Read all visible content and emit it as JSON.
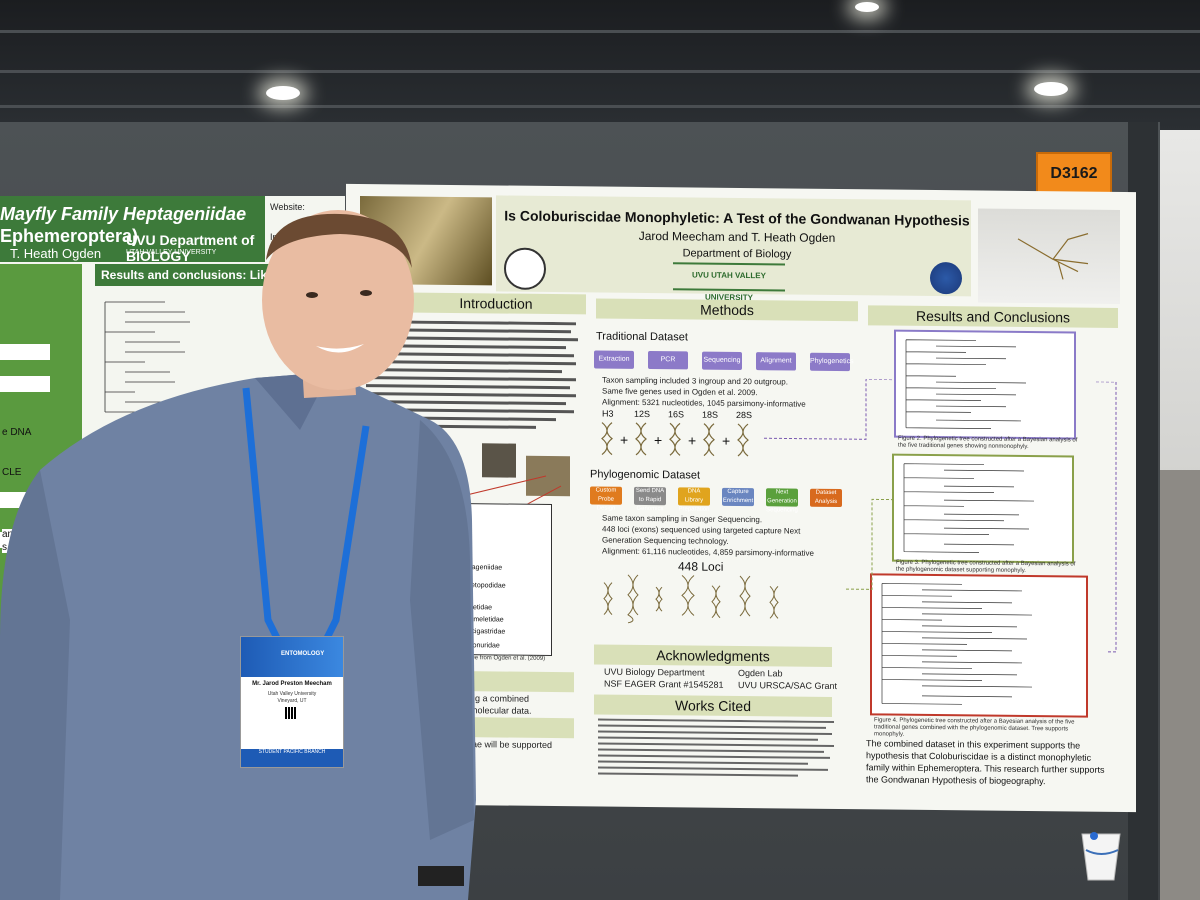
{
  "booth_number": "D3162",
  "left_poster": {
    "title_line1": "Mayfly Family Heptageniidae",
    "title_line2": "Ephemeroptera)",
    "author": "T. Heath Ogden",
    "logo": "UVU Department of BIOLOGY",
    "university": "UTAH VALLEY UNIVERSITY",
    "website_label": "Website:",
    "instagram_label": "Instagram:",
    "section": "Results and conclusions: Likelihood",
    "labels": [
      "e DNA",
      "CLE",
      "and Bayesian with",
      "s of the following"
    ]
  },
  "main_poster": {
    "title": "Is Coloburiscidae Monophyletic: A Test of the Gondwanan Hypothesis",
    "authors": "Jarod Meecham and T. Heath Ogden",
    "department": "Department of Biology",
    "university_logo": "UVU UTAH VALLEY UNIVERSITY",
    "nsf": "NSF",
    "sections": {
      "introduction": "Introduction",
      "methods": "Methods",
      "results": "Results and Conclusions",
      "acknowledgments": "Acknowledgments",
      "works_cited": "Works Cited"
    },
    "traditional_dataset": {
      "heading": "Traditional Dataset",
      "steps": [
        "Extraction",
        "PCR",
        "Sequencing",
        "Alignment",
        "Phylogenetics"
      ],
      "bullets": [
        "Taxon sampling included 3 ingroup and 20 outgroup.",
        "Same five genes used in Ogden et al. 2009.",
        "Alignment: 5321 nucleotides, 1045 parsimony-informative"
      ],
      "genes": [
        "H3",
        "12S",
        "16S",
        "18S",
        "28S"
      ]
    },
    "phylogenomic_dataset": {
      "heading": "Phylogenomic Dataset",
      "steps": [
        "Custom Probe Design",
        "Send DNA to Rapid Genomics",
        "DNA Library Preparation",
        "Capture Enrichment",
        "Next Generation Sequencing",
        "Dataset Analysis"
      ],
      "bullets": [
        "Same taxon sampling in Sanger Sequencing.",
        "448 loci (exons) sequenced using targeted capture Next Generation Sequencing technology.",
        "Alignment: 61,116 nucleotides, 4,859 parsimony-informative"
      ],
      "loci_label": "448 Loci"
    },
    "families": [
      "Heptageniidae",
      "Metretopodidae",
      "Ameletidae",
      "Nesameletidae",
      "Oniscigastridae",
      "Siphlonuridae"
    ],
    "figure_source": "Tree from Ogden et al. (2009)",
    "acknowledgments": [
      "UVU Biology Department",
      "NSF EAGER Grant #1545281",
      "Ogden Lab",
      "UVU URSCA/SAC Grant"
    ],
    "captions": [
      "Figure 2. Phylogenetic tree constructed after a Bayesian analysis of the five traditional genes showing nonmonophyly.",
      "Figure 3. Phylogenetic tree constructed after a Bayesian analysis of the phylogenomic dataset supporting monophyly.",
      "Figure 4. Phylogenetic tree constructed after a Bayesian analysis of the five traditional genes combined with the phylogenomic dataset. Tree supports monophyly."
    ],
    "conclusion": "The combined dataset in this experiment supports the hypothesis that Coloburiscidae is a distinct monophyletic family within Ephemeroptera. This research further supports the Gondwanan Hypothesis of biogeography.",
    "partial_text": [
      "ves",
      "ae using a combined",
      "tional molecular data.",
      "esis",
      "uriscidae will be supported"
    ]
  },
  "badge": {
    "name": "Mr. Jarod Preston Meecham",
    "org": "Utah Valley University",
    "location": "Vineyard, UT",
    "event": "ENTOMOLOGY",
    "footer": "STUDENT PACIFIC BRANCH"
  }
}
